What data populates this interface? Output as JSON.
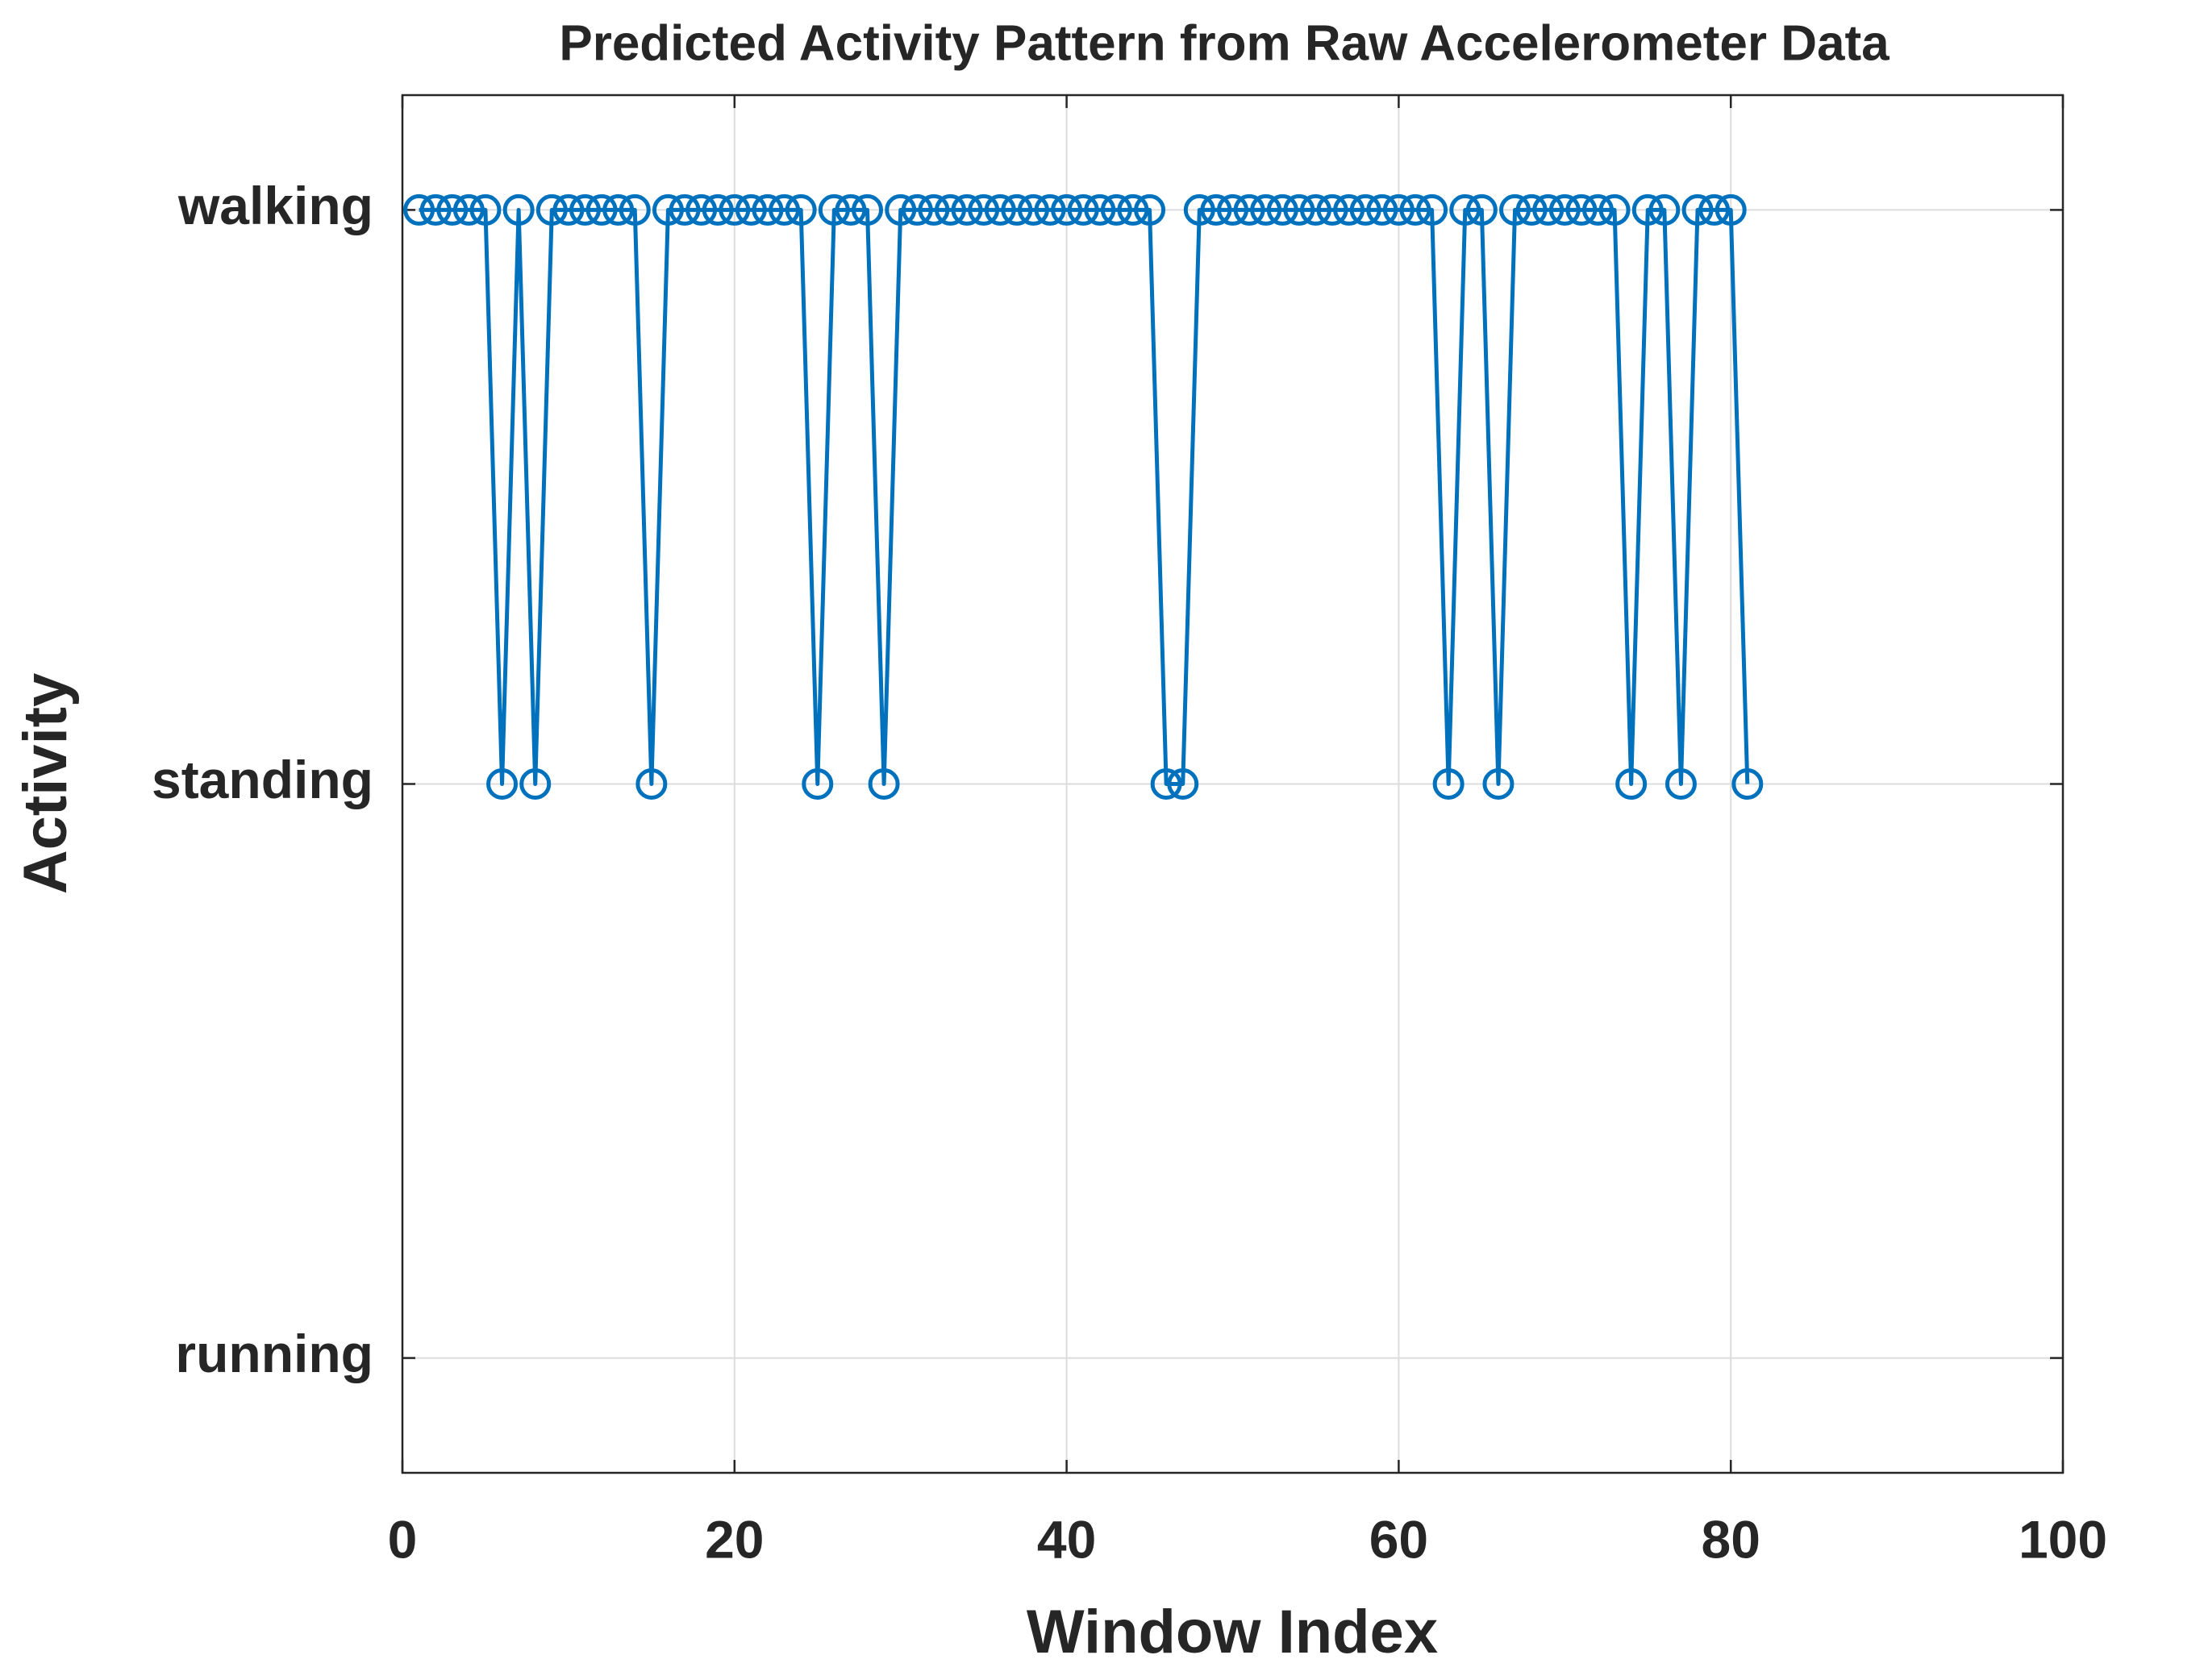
{
  "chart_data": {
    "type": "line",
    "title": "Predicted Activity Pattern from Raw Accelerometer Data",
    "x_label": "Window Index",
    "y_label": "Activity",
    "x": [
      1,
      2,
      3,
      4,
      5,
      6,
      7,
      8,
      9,
      10,
      11,
      12,
      13,
      14,
      15,
      16,
      17,
      18,
      19,
      20,
      21,
      22,
      23,
      24,
      25,
      26,
      27,
      28,
      29,
      30,
      31,
      32,
      33,
      34,
      35,
      36,
      37,
      38,
      39,
      40,
      41,
      42,
      43,
      44,
      45,
      46,
      47,
      48,
      49,
      50,
      51,
      52,
      53,
      54,
      55,
      56,
      57,
      58,
      59,
      60,
      61,
      62,
      63,
      64,
      65,
      66,
      67,
      68,
      69,
      70,
      71,
      72,
      73,
      74,
      75,
      76,
      77,
      78,
      79,
      80,
      81
    ],
    "series": [
      {
        "color": "#0072bd",
        "values": [
          3,
          3,
          3,
          3,
          3,
          2,
          3,
          2,
          3,
          3,
          3,
          3,
          3,
          3,
          2,
          3,
          3,
          3,
          3,
          3,
          3,
          3,
          3,
          3,
          2,
          3,
          3,
          3,
          2,
          3,
          3,
          3,
          3,
          3,
          3,
          3,
          3,
          3,
          3,
          3,
          3,
          3,
          3,
          3,
          3,
          2,
          2,
          3,
          3,
          3,
          3,
          3,
          3,
          3,
          3,
          3,
          3,
          3,
          3,
          3,
          3,
          3,
          2,
          3,
          3,
          2,
          3,
          3,
          3,
          3,
          3,
          3,
          3,
          2,
          3,
          3,
          2,
          3,
          3,
          3,
          2
        ]
      }
    ],
    "xlim": [
      0,
      100
    ],
    "xticks": [
      0,
      20,
      40,
      60,
      80,
      100
    ],
    "ylim": [
      0.8,
      3.2
    ],
    "yticks": [
      {
        "value": 1,
        "label": "running"
      },
      {
        "value": 2,
        "label": "standing"
      },
      {
        "value": 3,
        "label": "walking"
      }
    ],
    "grid": true,
    "marker": "circle"
  }
}
